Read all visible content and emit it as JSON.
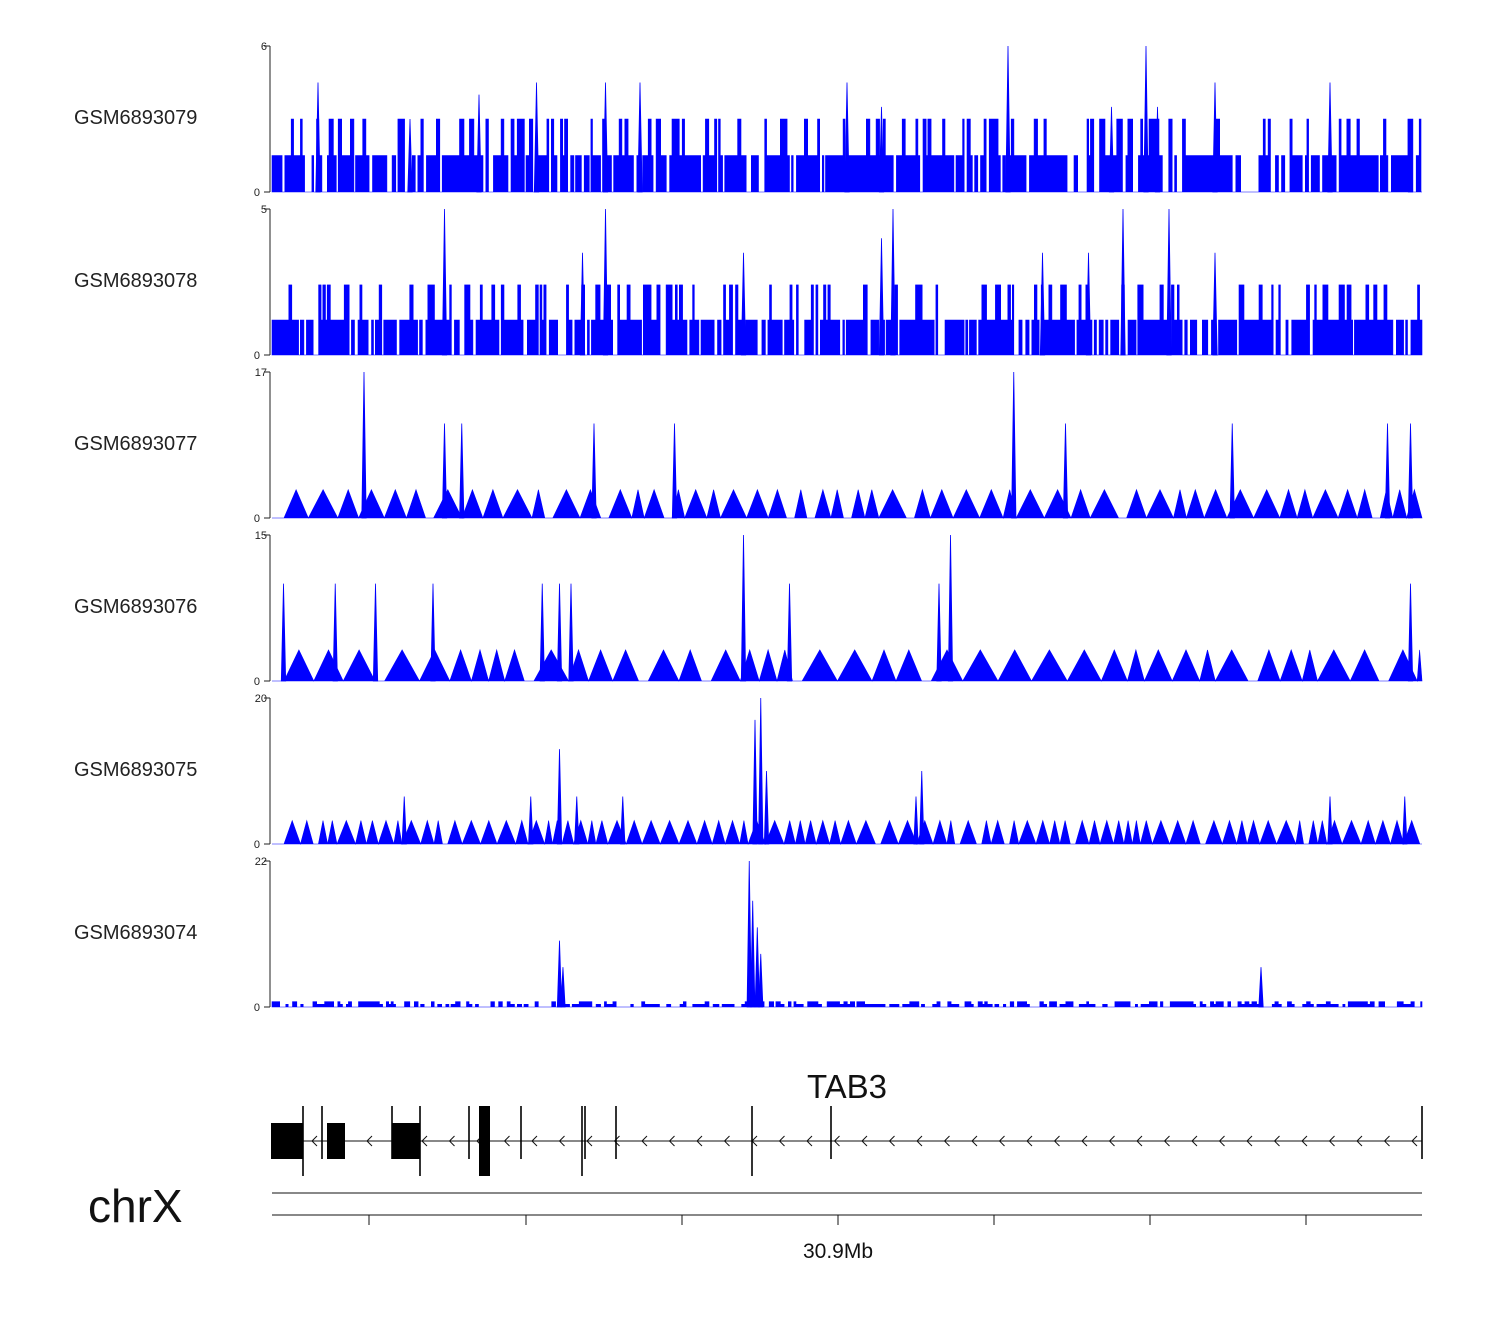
{
  "chart_data": {
    "type": "area",
    "title": "",
    "chromosome": "chrX",
    "gene": {
      "name": "TAB3",
      "strand": "-"
    },
    "axis": {
      "tick_labels": [
        "30.9Mb"
      ],
      "grid": false
    },
    "color": "#0000ff",
    "tracks": [
      {
        "name": "GSM6893079",
        "ylim": [
          0,
          6
        ],
        "peaks": [
          [
            0.04,
            4.5
          ],
          [
            0.12,
            3.0
          ],
          [
            0.18,
            4.0
          ],
          [
            0.23,
            4.5
          ],
          [
            0.29,
            4.5
          ],
          [
            0.32,
            4.5
          ],
          [
            0.5,
            4.5
          ],
          [
            0.53,
            3.5
          ],
          [
            0.64,
            6
          ],
          [
            0.73,
            3.5
          ],
          [
            0.76,
            6
          ],
          [
            0.77,
            3.5
          ],
          [
            0.82,
            4.5
          ],
          [
            0.92,
            4.5
          ],
          [
            0.99,
            3.0
          ]
        ]
      },
      {
        "name": "GSM6893078",
        "ylim": [
          0,
          5
        ],
        "peaks": [
          [
            0.15,
            5
          ],
          [
            0.27,
            3.5
          ],
          [
            0.29,
            5
          ],
          [
            0.41,
            3.5
          ],
          [
            0.53,
            4.0
          ],
          [
            0.54,
            5
          ],
          [
            0.67,
            3.5
          ],
          [
            0.71,
            3.5
          ],
          [
            0.74,
            5
          ],
          [
            0.78,
            5
          ],
          [
            0.82,
            3.5
          ]
        ]
      },
      {
        "name": "GSM6893077",
        "ylim": [
          0,
          17
        ],
        "peaks": [
          [
            0.08,
            17
          ],
          [
            0.15,
            11
          ],
          [
            0.165,
            11
          ],
          [
            0.28,
            11
          ],
          [
            0.35,
            11
          ],
          [
            0.645,
            17
          ],
          [
            0.69,
            11
          ],
          [
            0.835,
            11
          ],
          [
            0.97,
            11
          ],
          [
            0.99,
            11
          ]
        ]
      },
      {
        "name": "GSM6893076",
        "ylim": [
          0,
          15
        ],
        "peaks": [
          [
            0.01,
            10
          ],
          [
            0.055,
            10
          ],
          [
            0.09,
            10
          ],
          [
            0.14,
            10
          ],
          [
            0.235,
            10
          ],
          [
            0.25,
            10
          ],
          [
            0.26,
            10
          ],
          [
            0.41,
            15
          ],
          [
            0.45,
            10
          ],
          [
            0.58,
            10
          ],
          [
            0.59,
            15
          ],
          [
            0.99,
            10
          ]
        ]
      },
      {
        "name": "GSM6893075",
        "ylim": [
          0,
          20
        ],
        "peaks": [
          [
            0.115,
            6.5
          ],
          [
            0.225,
            6.5
          ],
          [
            0.25,
            13
          ],
          [
            0.265,
            6.5
          ],
          [
            0.305,
            6.5
          ],
          [
            0.42,
            17
          ],
          [
            0.425,
            20
          ],
          [
            0.43,
            10
          ],
          [
            0.56,
            6.5
          ],
          [
            0.565,
            10
          ],
          [
            0.92,
            6.5
          ],
          [
            0.985,
            6.5
          ]
        ]
      },
      {
        "name": "GSM6893074",
        "ylim": [
          0,
          22
        ],
        "peaks": [
          [
            0.25,
            10
          ],
          [
            0.253,
            6
          ],
          [
            0.415,
            22
          ],
          [
            0.418,
            16
          ],
          [
            0.422,
            12
          ],
          [
            0.425,
            8
          ],
          [
            0.86,
            6
          ]
        ]
      }
    ]
  }
}
